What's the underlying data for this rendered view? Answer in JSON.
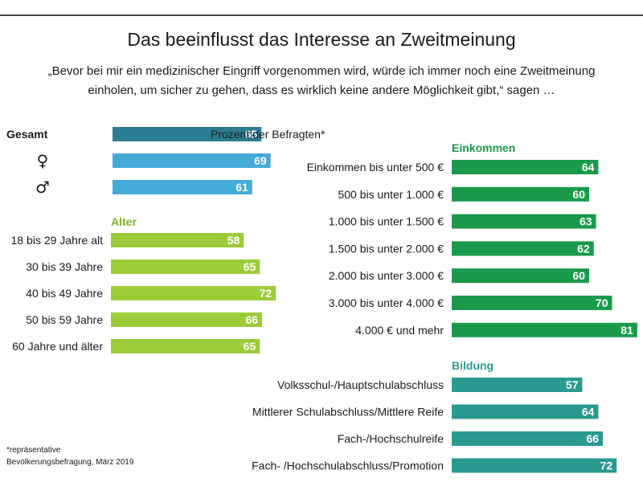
{
  "title": "Das beeinflusst das Interesse an Zweitmeinung",
  "subtitle_line1": "„Bevor bei mir ein medizinischer Eingriff vorgenommen wird, würde ich immer noch eine Zweitmeinung",
  "subtitle_line2": "einholen, um sicher zu gehen, dass es wirklich keine andere Möglichkeit gibt,“ sagen …",
  "unit_note": "Prozent der Befragten*",
  "footnote_line1": "*repräsentative",
  "footnote_line2": "Bevölkerungsbefragung, März 2019",
  "colors": {
    "gesamt": "#2b7e91",
    "gender": "#44aad8",
    "alter": "#9ccb3a",
    "einkommen": "#1a9a4a",
    "bildung": "#2a9a90",
    "alter_heading": "#7fb32a",
    "einkommen_heading": "#1a9a4a",
    "bildung_heading": "#2a9a90"
  },
  "chart_data": [
    {
      "type": "bar",
      "name": "Gesamt",
      "categories": [
        "Gesamt",
        "♀",
        "♂"
      ],
      "values": [
        65,
        69,
        61
      ]
    },
    {
      "type": "bar",
      "name": "Alter",
      "categories": [
        "18 bis 29 Jahre alt",
        "30 bis 39 Jahre",
        "40 bis 49 Jahre",
        "50 bis 59 Jahre",
        "60 Jahre und älter"
      ],
      "values": [
        58,
        65,
        72,
        66,
        65
      ]
    },
    {
      "type": "bar",
      "name": "Einkommen",
      "categories": [
        "Einkommen bis unter 500 €",
        "500 bis unter 1.000 €",
        "1.000 bis unter 1.500 €",
        "1.500 bis unter 2.000 €",
        "2.000 bis unter 3.000 €",
        "3.000 bis unter 4.000 €",
        "4.000 € und mehr"
      ],
      "values": [
        64,
        60,
        63,
        62,
        60,
        70,
        81
      ]
    },
    {
      "type": "bar",
      "name": "Bildung",
      "categories": [
        "Volksschul-/Hauptschulabschluss",
        "Mittlerer Schulabschluss/Mittlere Reife",
        "Fach-/Hochschulreife",
        "Fach- /Hochschulabschluss/Promotion"
      ],
      "values": [
        57,
        64,
        66,
        72
      ]
    }
  ]
}
